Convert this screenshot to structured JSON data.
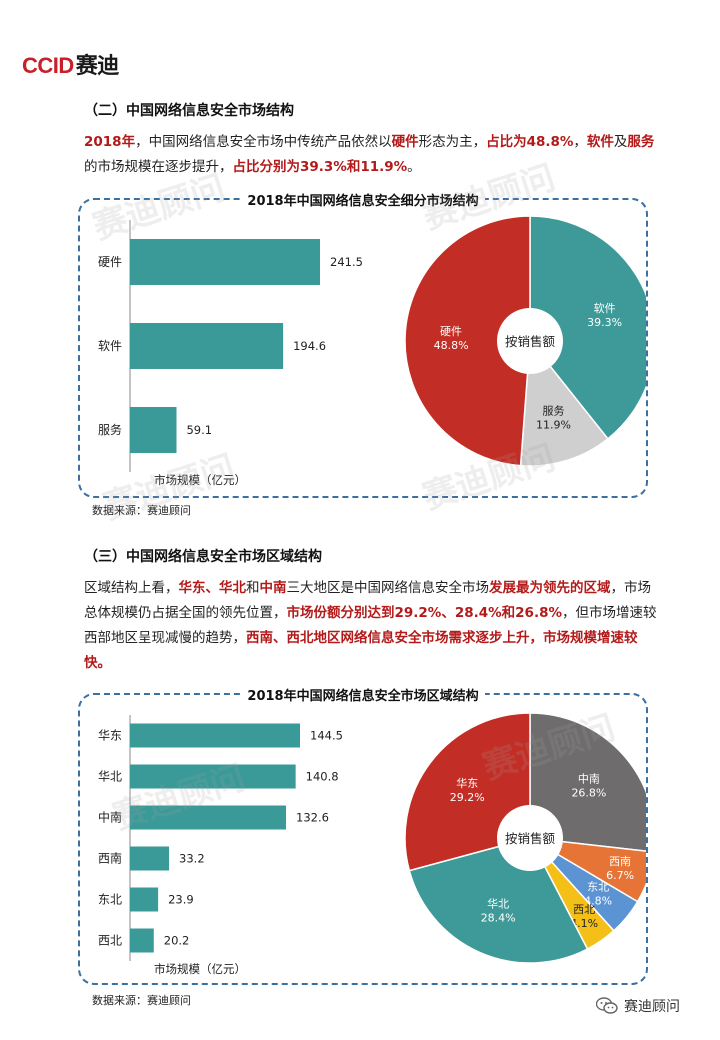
{
  "logo": {
    "part_a": "CCID",
    "part_b": "赛迪"
  },
  "section2": {
    "title": "（二）中国网络信息安全市场结构",
    "para": [
      {
        "t": "2018年",
        "r": true
      },
      {
        "t": "，中国网络信息安全市场中传统产品依然以",
        "r": false
      },
      {
        "t": "硬件",
        "r": true
      },
      {
        "t": "形态为主，",
        "r": false
      },
      {
        "t": "占比为48.8%",
        "r": true
      },
      {
        "t": "，",
        "r": false
      },
      {
        "t": "软件",
        "r": true
      },
      {
        "t": "及",
        "r": false
      },
      {
        "t": "服务",
        "r": true
      },
      {
        "t": "的市场规模在逐步提升，",
        "r": false
      },
      {
        "t": "占比分别为39.3%和11.9%",
        "r": true
      },
      {
        "t": "。",
        "r": false
      }
    ],
    "chart_title": "2018年中国网络信息安全细分市场结构",
    "source": "数据来源：赛迪顾问"
  },
  "section3": {
    "title": "（三）中国网络信息安全市场区域结构",
    "para": [
      {
        "t": "区域结构上看，",
        "r": false
      },
      {
        "t": "华东、华北",
        "r": true
      },
      {
        "t": "和",
        "r": false
      },
      {
        "t": "中南",
        "r": true
      },
      {
        "t": "三大地区是中国网络信息安全市场",
        "r": false
      },
      {
        "t": "发展最为领先的区域",
        "r": true
      },
      {
        "t": "，市场总体规模仍占据全国的领先位置，",
        "r": false
      },
      {
        "t": "市场份额分别达到29.2%、28.4%和26.8%",
        "r": true
      },
      {
        "t": "，但市场增速较西部地区呈现减慢的趋势，",
        "r": false
      },
      {
        "t": "西南、西北地区网络信息安全市场需求逐步上升，市场规模增速较快。",
        "r": true
      }
    ],
    "chart_title": "2018年中国网络信息安全市场区域结构",
    "source": "数据来源：赛迪顾问"
  },
  "watermark": "赛迪顾问",
  "wechat_label": "赛迪顾问",
  "chart_data": [
    {
      "type": "bar",
      "orientation": "horizontal",
      "categories": [
        "硬件",
        "软件",
        "服务"
      ],
      "values": [
        241.5,
        194.6,
        59.1
      ],
      "xlabel": "市场规模（亿元）",
      "color": "#3a9a98"
    },
    {
      "type": "pie",
      "center_label": "按销售额",
      "slices": [
        {
          "name": "软件",
          "value": 39.3,
          "label": "39.3%",
          "color": "#3d9a98"
        },
        {
          "name": "服务",
          "value": 11.9,
          "label": "11.9%",
          "color": "#cfcfcf"
        },
        {
          "name": "硬件",
          "value": 48.8,
          "label": "48.8%",
          "color": "#c22e25"
        }
      ]
    },
    {
      "type": "bar",
      "orientation": "horizontal",
      "categories": [
        "华东",
        "华北",
        "中南",
        "西南",
        "东北",
        "西北"
      ],
      "values": [
        144.5,
        140.8,
        132.6,
        33.2,
        23.9,
        20.2
      ],
      "xlabel": "市场规模（亿元）",
      "color": "#3a9a98"
    },
    {
      "type": "pie",
      "center_label": "按销售额",
      "slices": [
        {
          "name": "中南",
          "value": 26.8,
          "label": "26.8%",
          "color": "#6e6c6c"
        },
        {
          "name": "西南",
          "value": 6.7,
          "label": "6.7%",
          "color": "#e57436"
        },
        {
          "name": "东北",
          "value": 4.8,
          "label": "4.8%",
          "color": "#5b93d3"
        },
        {
          "name": "西北",
          "value": 4.1,
          "label": "4.1%",
          "color": "#f4c018"
        },
        {
          "name": "华北",
          "value": 28.4,
          "label": "28.4%",
          "color": "#3d9a98"
        },
        {
          "name": "华东",
          "value": 29.2,
          "label": "29.2%",
          "color": "#c22e25"
        }
      ]
    }
  ]
}
